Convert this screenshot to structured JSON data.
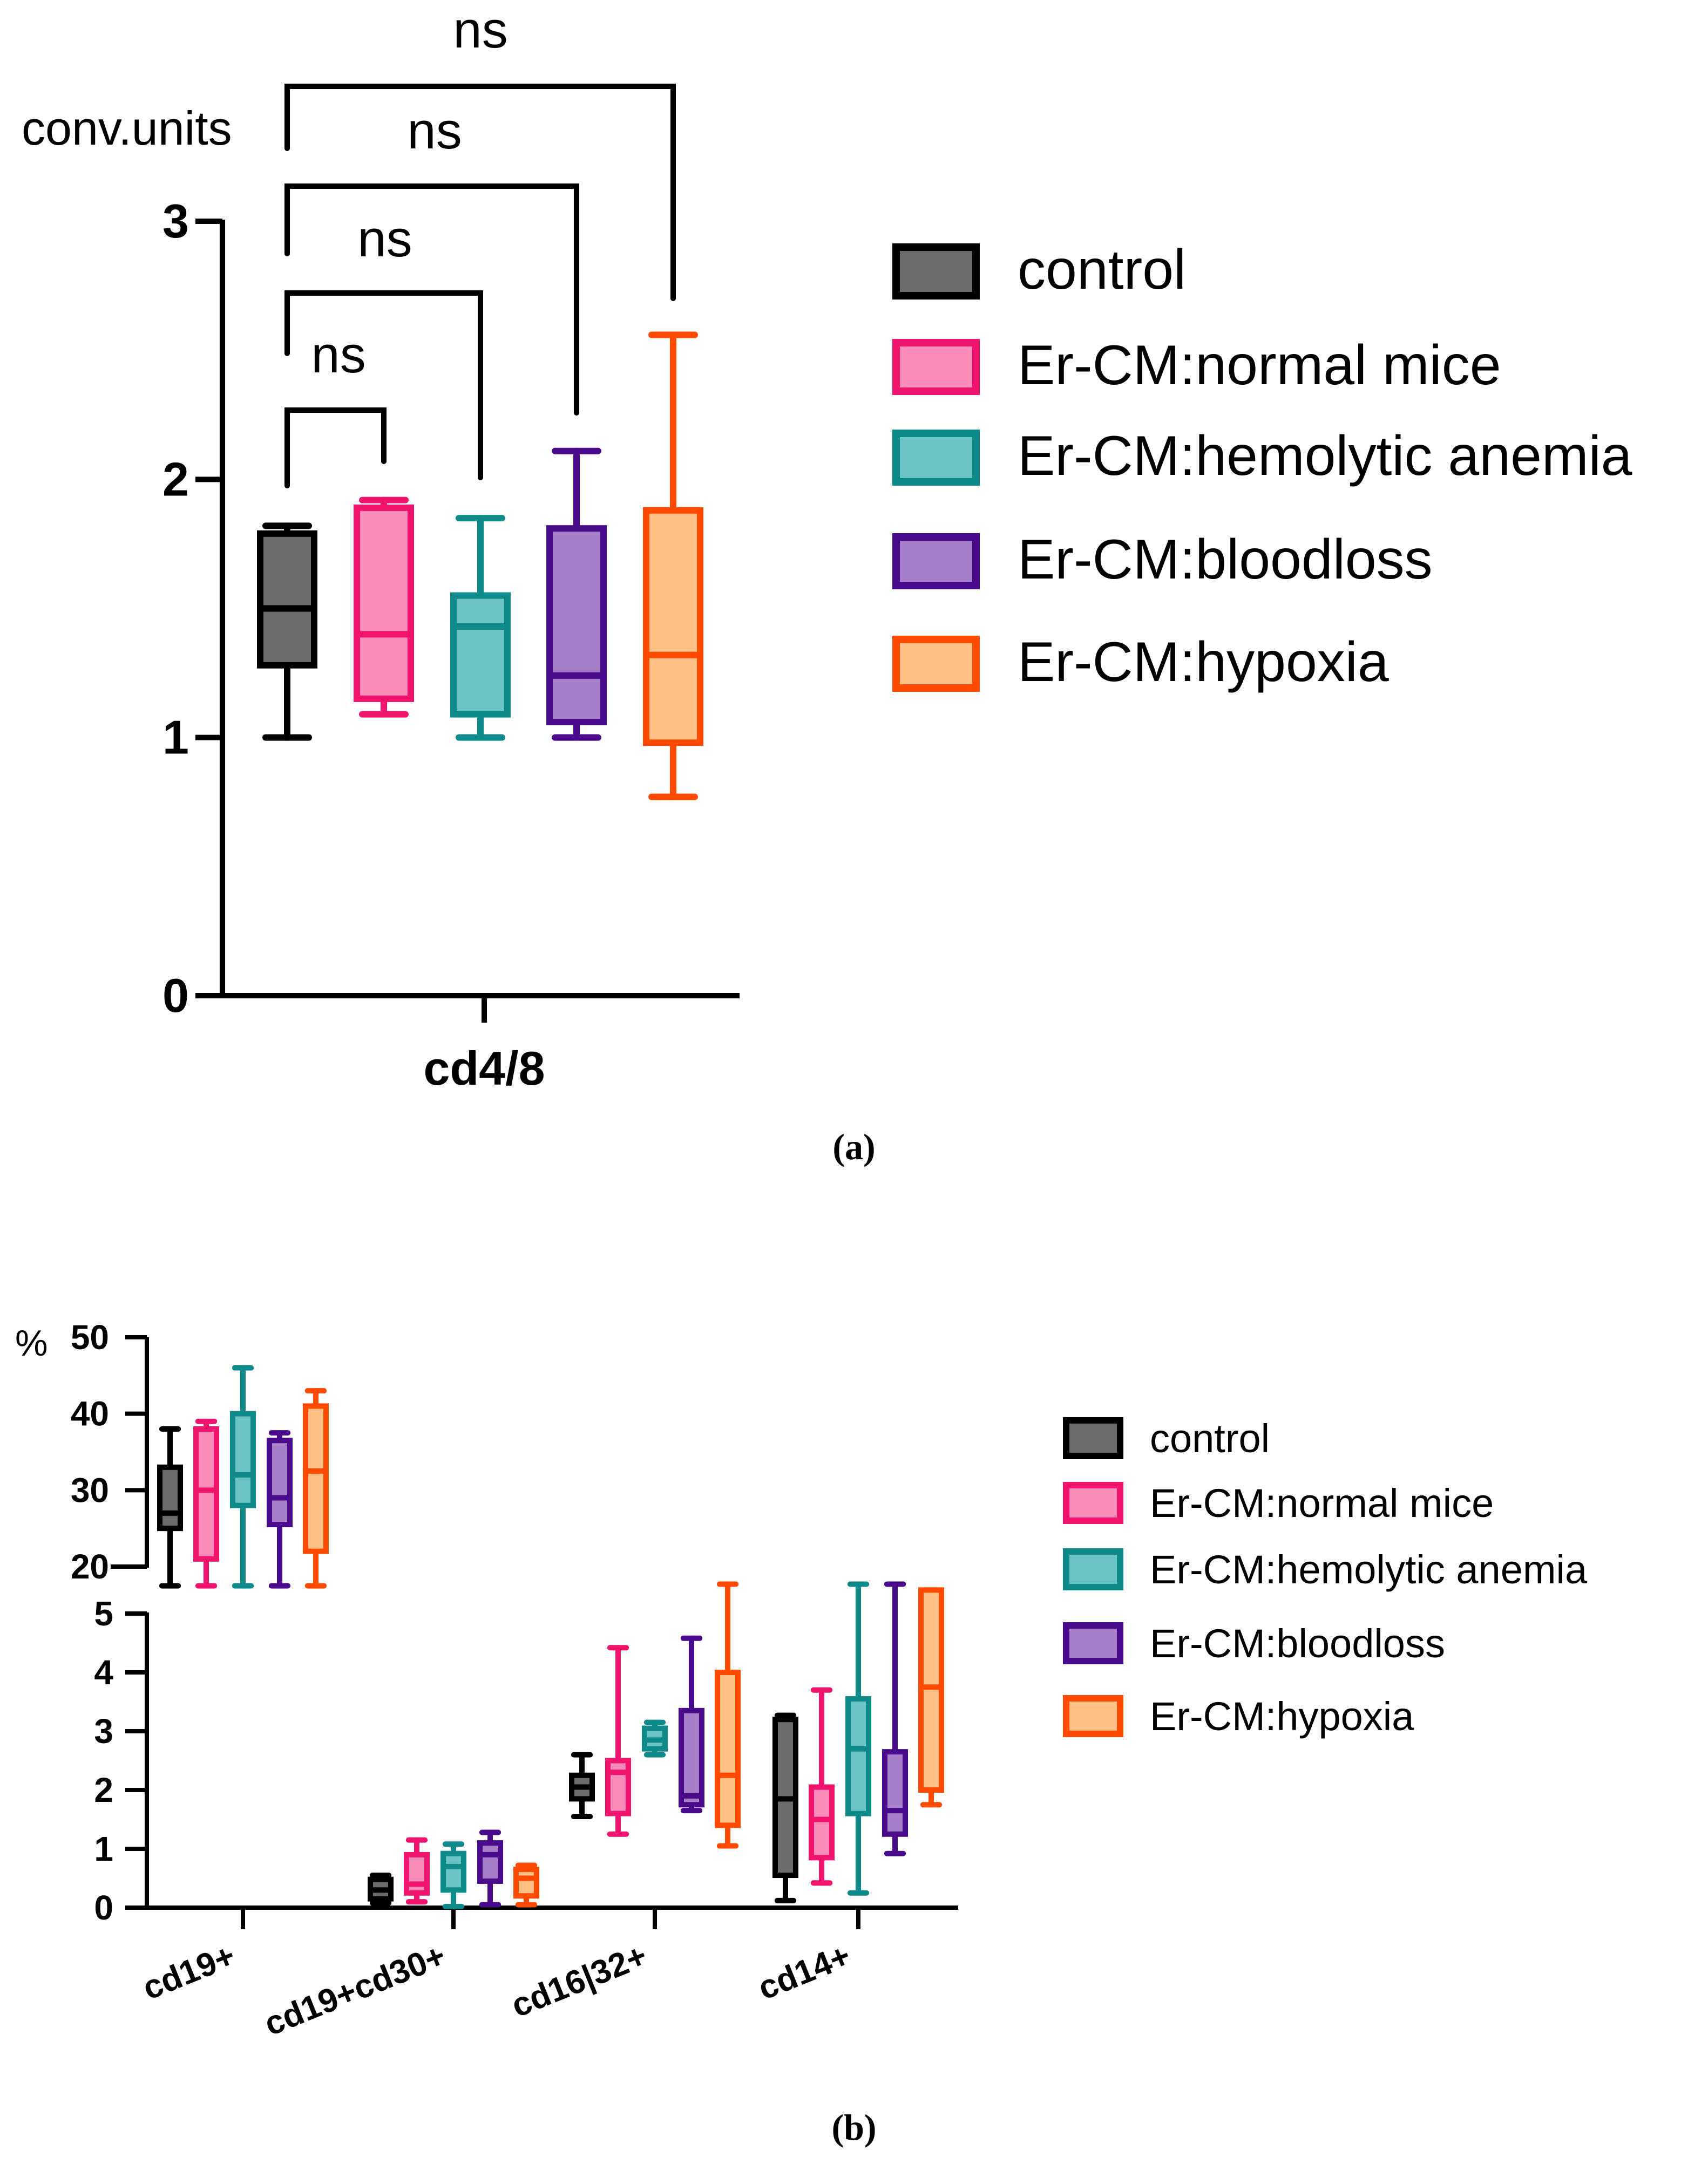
{
  "colors": {
    "control": {
      "stroke": "#000000",
      "fill": "#6b6b6b"
    },
    "normal": {
      "stroke": "#f0146e",
      "fill": "#f98bb8"
    },
    "hemolytic": {
      "stroke": "#0f8a8a",
      "fill": "#6cc3c3"
    },
    "bloodloss": {
      "stroke": "#4a0a8c",
      "fill": "#a57fc8"
    },
    "hypoxia": {
      "stroke": "#ff4a00",
      "fill": "#ffbf85"
    }
  },
  "chart_data": [
    {
      "type": "box",
      "panel": "(a)",
      "ylabel": "conv.units",
      "xlabel": "cd4/8",
      "ylim": [
        0,
        3
      ],
      "yticks": [
        "0",
        "1",
        "2",
        "3"
      ],
      "legend": [
        "control",
        "Er-CM:normal mice",
        "Er-CM:hemolytic anemia",
        "Er-CM:bloodloss",
        "Er-CM:hypoxia"
      ],
      "series": [
        {
          "name": "control",
          "min": 1.0,
          "q1": 1.28,
          "median": 1.5,
          "q3": 1.79,
          "max": 1.82
        },
        {
          "name": "Er-CM:normal mice",
          "min": 1.09,
          "q1": 1.15,
          "median": 1.4,
          "q3": 1.89,
          "max": 1.92
        },
        {
          "name": "Er-CM:hemolytic anemia",
          "min": 1.0,
          "q1": 1.09,
          "median": 1.43,
          "q3": 1.55,
          "max": 1.85
        },
        {
          "name": "Er-CM:bloodloss",
          "min": 1.0,
          "q1": 1.06,
          "median": 1.24,
          "q3": 1.81,
          "max": 2.11
        },
        {
          "name": "Er-CM:hypoxia",
          "min": 0.77,
          "q1": 0.98,
          "median": 1.32,
          "q3": 1.88,
          "max": 2.56
        }
      ],
      "annotations": [
        {
          "label": "ns",
          "from": "control",
          "to": "Er-CM:normal mice"
        },
        {
          "label": "ns",
          "from": "control",
          "to": "Er-CM:hemolytic anemia"
        },
        {
          "label": "ns",
          "from": "control",
          "to": "Er-CM:bloodloss"
        },
        {
          "label": "ns",
          "from": "control",
          "to": "Er-CM:hypoxia"
        }
      ]
    },
    {
      "type": "box",
      "panel": "(b)",
      "ylabel": "%",
      "y_break": true,
      "upper_ylim": [
        20,
        50
      ],
      "upper_yticks": [
        "20",
        "30",
        "40",
        "50"
      ],
      "lower_ylim": [
        0,
        5
      ],
      "lower_yticks": [
        "0",
        "1",
        "2",
        "3",
        "4",
        "5"
      ],
      "categories": [
        "cd19+",
        "cd19+cd30+",
        "cd16|32+",
        "cd14+"
      ],
      "legend": [
        "control",
        "Er-CM:normal mice",
        "Er-CM:hemolytic anemia",
        "Er-CM:bloodloss",
        "Er-CM:hypoxia"
      ],
      "series": [
        {
          "name": "control",
          "boxes": [
            {
              "min": 16,
              "q1": 25,
              "median": 27,
              "q3": 33,
              "max": 38
            },
            {
              "min": 0.08,
              "q1": 0.15,
              "median": 0.3,
              "q3": 0.48,
              "max": 0.55
            },
            {
              "min": 1.55,
              "q1": 1.85,
              "median": 2.05,
              "q3": 2.25,
              "max": 2.6
            },
            {
              "min": 0.12,
              "q1": 0.55,
              "median": 1.85,
              "q3": 3.2,
              "max": 3.27
            }
          ]
        },
        {
          "name": "Er-CM:normal mice",
          "boxes": [
            {
              "min": 16,
              "q1": 21,
              "median": 30,
              "q3": 38,
              "max": 39
            },
            {
              "min": 0.1,
              "q1": 0.25,
              "median": 0.4,
              "q3": 0.9,
              "max": 1.15
            },
            {
              "min": 1.25,
              "q1": 1.6,
              "median": 2.3,
              "q3": 2.5,
              "max": 4.42
            },
            {
              "min": 0.42,
              "q1": 0.85,
              "median": 1.5,
              "q3": 2.05,
              "max": 3.7
            }
          ]
        },
        {
          "name": "Er-CM:hemolytic anemia",
          "boxes": [
            {
              "min": 16,
              "q1": 28,
              "median": 32,
              "q3": 40,
              "max": 46
            },
            {
              "min": 0.02,
              "q1": 0.3,
              "median": 0.7,
              "q3": 0.92,
              "max": 1.08
            },
            {
              "min": 2.6,
              "q1": 2.7,
              "median": 2.85,
              "q3": 3.05,
              "max": 3.15
            },
            {
              "min": 0.25,
              "q1": 1.6,
              "median": 2.7,
              "q3": 3.55,
              "max": 5.5
            }
          ]
        },
        {
          "name": "Er-CM:bloodloss",
          "boxes": [
            {
              "min": 16,
              "q1": 25.5,
              "median": 29,
              "q3": 36.5,
              "max": 37.5
            },
            {
              "min": 0.05,
              "q1": 0.45,
              "median": 0.9,
              "q3": 1.1,
              "max": 1.28
            },
            {
              "min": 1.65,
              "q1": 1.75,
              "median": 1.9,
              "q3": 3.35,
              "max": 4.58
            },
            {
              "min": 0.92,
              "q1": 1.25,
              "median": 1.65,
              "q3": 2.65,
              "max": 5.5
            }
          ]
        },
        {
          "name": "Er-CM:hypoxia",
          "boxes": [
            {
              "min": 16,
              "q1": 22,
              "median": 32.5,
              "q3": 41,
              "max": 43
            },
            {
              "min": 0.05,
              "q1": 0.2,
              "median": 0.5,
              "q3": 0.65,
              "max": 0.72
            },
            {
              "min": 1.05,
              "q1": 1.4,
              "median": 2.25,
              "q3": 4.0,
              "max": 5.5
            },
            {
              "min": 1.75,
              "q1": 2.0,
              "median": 3.75,
              "q3": 5.4,
              "max": 5.4
            }
          ]
        }
      ]
    }
  ],
  "captions": {
    "a": "(a)",
    "b": "(b)"
  }
}
